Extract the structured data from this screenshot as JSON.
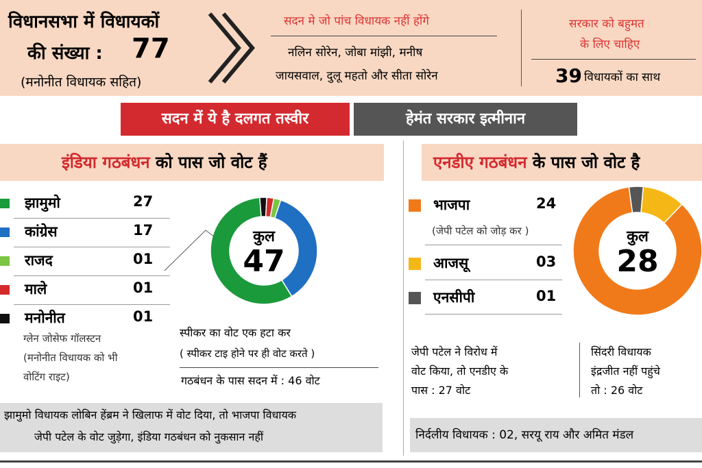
{
  "summary": {
    "title_line1": "विधानसभा में विधायकों",
    "title_line2": "की संख्या :",
    "count": 77,
    "note": "(मनोनीत विधायक सहित)"
  },
  "absent": {
    "heading": "सदन मे जो पांच विधायक नहीं होंगे",
    "names_line1": "नलिन सोरेन, जोबा मांझी, मनीष",
    "names_line2": "जायसवाल, दुलू महतो और सीता सोरेन"
  },
  "majority": {
    "heading_line1": "सरकार को बहुमत",
    "heading_line2": "के लिए चाहिए",
    "count": 39,
    "text": "विधायकों का साथ"
  },
  "banner": {
    "left": "सदन में ये है दलगत तस्वीर",
    "right": "हेमंत सरकार इत्मीनान"
  },
  "india": {
    "heading_highlight": "इंडिया गठबंधन",
    "heading_rest": "को पास जो वोट हैं",
    "parties": [
      {
        "name": "झामुमो",
        "seats": 27,
        "color": "#1b9a3c"
      },
      {
        "name": "कांग्रेस",
        "seats": 17,
        "color": "#1f6fc2"
      },
      {
        "name": "राजद",
        "seats": {
          "value": 1,
          "label": "01"
        },
        "color": "#7cc443"
      },
      {
        "name": "माले",
        "seats": {
          "value": 1,
          "label": "01"
        },
        "color": "#d42a2a"
      },
      {
        "name": "मनोनीत",
        "seats": {
          "value": 1,
          "label": "01"
        },
        "color": "#111111"
      }
    ],
    "nominated_note": [
      "ग्लेन जोसेफ गॉलस्टन",
      "(मनोनीत विधायक को भी",
      "वोटिंग राइट)"
    ],
    "total_label": "कुल",
    "total": 47,
    "speaker_note_line1": "स्पीकर का वोट एक हटा कर",
    "speaker_note_line2": "( स्पीकर टाइ होने पर ही वोट करते )",
    "effective": "गठबंधन के पास सदन में : 46 वोट",
    "footer_line1": "झामुमो विधायक लोबिन हेंब्रम ने खिलाफ में वोट दिया, तो भाजपा विधायक",
    "footer_line2": "जेपी पटेल के वोट जुड़ेगा, इंडिया गठबंधन को नुकसान नहीं"
  },
  "nda": {
    "heading_highlight": "एनडीए गठबंधन",
    "heading_rest": "के पास जो वोट है",
    "parties": [
      {
        "name": "भाजपा",
        "note": "(जेपी पटेल को जोड़ कर )",
        "seats": 24,
        "color": "#f07a1a"
      },
      {
        "name": "आजसू",
        "seats": {
          "value": 3,
          "label": "03"
        },
        "color": "#f5b716"
      },
      {
        "name": "एनसीपी",
        "seats": {
          "value": 1,
          "label": "01"
        },
        "color": "#555555"
      }
    ],
    "total_label": "कुल",
    "total": 28,
    "scenario1": [
      "जेपी पटेल ने विरोध में",
      "वोट किया, तो एनडीए के",
      "पास : 27 वोट"
    ],
    "scenario2": [
      "सिंदरी विधायक",
      "इंद्रजीत नहीं पहुंचे",
      "तो : 26 वोट"
    ],
    "footer": "निर्दलीय विधायक : 02, सरयू राय और अमित मंडल"
  }
}
